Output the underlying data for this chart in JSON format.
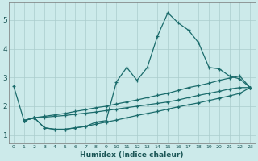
{
  "xlabel": "Humidex (Indice chaleur)",
  "bg_color": "#cceaea",
  "grid_color": "#aacccc",
  "line_color": "#1a6b6b",
  "xlim": [
    -0.5,
    23.5
  ],
  "ylim": [
    0.7,
    5.6
  ],
  "xticks": [
    0,
    1,
    2,
    3,
    4,
    5,
    6,
    7,
    8,
    9,
    10,
    11,
    12,
    13,
    14,
    15,
    16,
    17,
    18,
    19,
    20,
    21,
    22,
    23
  ],
  "yticks": [
    1,
    2,
    3,
    4,
    5
  ],
  "line1_x": [
    0,
    1,
    2,
    3,
    4,
    5,
    6,
    7,
    8,
    9,
    10,
    11,
    12,
    13,
    14,
    15,
    16,
    17,
    18,
    19,
    20,
    21,
    22,
    23
  ],
  "line1_y": [
    2.7,
    1.5,
    1.6,
    1.25,
    1.2,
    1.2,
    1.25,
    1.3,
    1.45,
    1.5,
    2.85,
    3.35,
    2.9,
    3.35,
    4.45,
    5.25,
    4.9,
    4.65,
    4.2,
    3.35,
    3.3,
    3.05,
    2.95,
    2.65
  ],
  "line2_x": [
    1,
    2,
    3,
    4,
    5,
    6,
    7,
    8,
    9,
    10,
    11,
    12,
    13,
    14,
    15,
    16,
    17,
    18,
    19,
    20,
    21,
    22,
    23
  ],
  "line2_y": [
    1.5,
    1.6,
    1.65,
    1.7,
    1.75,
    1.82,
    1.88,
    1.95,
    2.0,
    2.08,
    2.15,
    2.22,
    2.3,
    2.38,
    2.45,
    2.55,
    2.65,
    2.72,
    2.8,
    2.9,
    2.98,
    3.05,
    2.65
  ],
  "line3_x": [
    1,
    2,
    3,
    4,
    5,
    6,
    7,
    8,
    9,
    10,
    11,
    12,
    13,
    14,
    15,
    16,
    17,
    18,
    19,
    20,
    21,
    22,
    23
  ],
  "line3_y": [
    1.5,
    1.6,
    1.62,
    1.65,
    1.68,
    1.72,
    1.76,
    1.8,
    1.85,
    1.9,
    1.95,
    2.0,
    2.05,
    2.1,
    2.15,
    2.22,
    2.3,
    2.38,
    2.45,
    2.52,
    2.6,
    2.65,
    2.65
  ],
  "line4_x": [
    1,
    2,
    3,
    4,
    5,
    6,
    7,
    8,
    9,
    10,
    11,
    12,
    13,
    14,
    15,
    16,
    17,
    18,
    19,
    20,
    21,
    22,
    23
  ],
  "line4_y": [
    1.5,
    1.6,
    1.25,
    1.2,
    1.2,
    1.25,
    1.3,
    1.38,
    1.45,
    1.52,
    1.6,
    1.68,
    1.75,
    1.82,
    1.9,
    1.98,
    2.05,
    2.12,
    2.2,
    2.28,
    2.36,
    2.45,
    2.65
  ]
}
